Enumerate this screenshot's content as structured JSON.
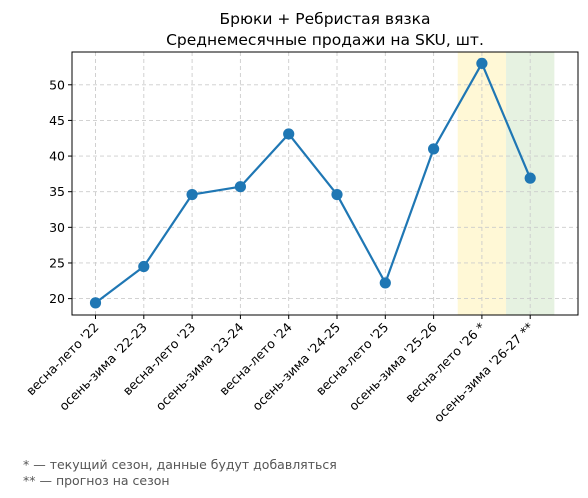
{
  "chart_data": {
    "type": "line",
    "title": "Брюки + Ребристая вязка",
    "subtitle": "Среднемесячные продажи на SKU, шт.",
    "categories": [
      "весна-лето '22",
      "осень-зима '22-23",
      "весна-лето '23",
      "осень-зима '23-24",
      "весна-лето '24",
      "осень-зима '24-25",
      "весна-лето '25",
      "осень-зима '25-26",
      "весна-лето '26 *",
      "осень-зима '26-27 **"
    ],
    "values": [
      19.4,
      24.5,
      34.6,
      35.7,
      43.1,
      34.6,
      22.2,
      41.0,
      53.0,
      36.9
    ],
    "ylim": [
      17.7,
      54.6
    ],
    "yticks": [
      20,
      25,
      30,
      35,
      40,
      45,
      50
    ],
    "grid": true,
    "line_color": "#1f77b4",
    "highlights": [
      {
        "category_index": 8,
        "color": "#fff8d6"
      },
      {
        "category_index": 9,
        "color": "#e6f2e1"
      }
    ]
  },
  "footnotes": [
    "* — текущий сезон, данные будут добавляться",
    "** — прогноз на сезон"
  ]
}
